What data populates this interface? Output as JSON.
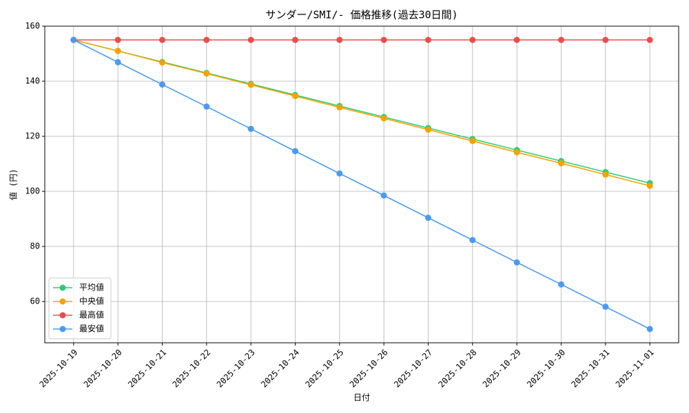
{
  "chart_data": {
    "type": "line",
    "title": "サンダー/SMI/- 価格推移(過去30日間)",
    "xlabel": "日付",
    "ylabel": "値 (円)",
    "categories": [
      "2025-10-19",
      "2025-10-20",
      "2025-10-21",
      "2025-10-22",
      "2025-10-23",
      "2025-10-24",
      "2025-10-25",
      "2025-10-26",
      "2025-10-27",
      "2025-10-28",
      "2025-10-29",
      "2025-10-30",
      "2025-10-31",
      "2025-11-01"
    ],
    "series": [
      {
        "name": "平均値",
        "color": "#2ecc71",
        "values": [
          155,
          151,
          147,
          143,
          139,
          135,
          131,
          127,
          123,
          119,
          115,
          111,
          107,
          103
        ]
      },
      {
        "name": "中央値",
        "color": "#f5a300",
        "values": [
          155,
          151,
          146.8,
          142.8,
          138.7,
          134.6,
          130.5,
          126.5,
          122.4,
          118.3,
          114.2,
          110.2,
          106.1,
          102
        ]
      },
      {
        "name": "最高値",
        "color": "#f04a4a",
        "values": [
          155,
          155,
          155,
          155,
          155,
          155,
          155,
          155,
          155,
          155,
          155,
          155,
          155,
          155
        ]
      },
      {
        "name": "最安値",
        "color": "#4a9af5",
        "values": [
          155,
          146.9,
          138.8,
          130.8,
          122.7,
          114.6,
          106.5,
          98.5,
          90.4,
          82.3,
          74.2,
          66.2,
          58.1,
          50
        ]
      }
    ],
    "ylim": [
      45,
      160
    ],
    "yticks": [
      60,
      80,
      100,
      120,
      140,
      160
    ],
    "grid": true,
    "legend": "lower left"
  }
}
